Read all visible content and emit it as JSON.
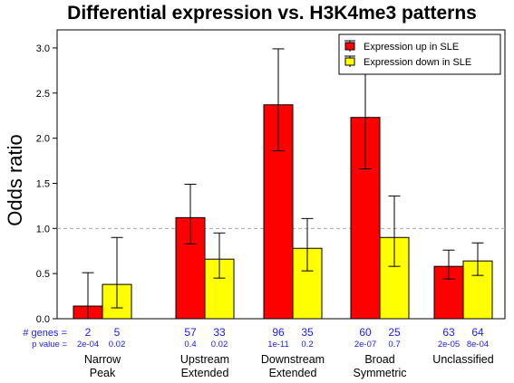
{
  "chart_data": {
    "type": "bar",
    "title": "Differential expression vs. H3K4me3 patterns",
    "ylabel": "Odds ratio",
    "xlabel": "",
    "ylim": [
      0,
      3.2
    ],
    "yticks": [
      "0.0",
      "0.5",
      "1.0",
      "1.5",
      "2.0",
      "2.5",
      "3.0"
    ],
    "ytick_values": [
      0,
      0.5,
      1.0,
      1.5,
      2.0,
      2.5,
      3.0
    ],
    "reference_line": 1.0,
    "legend_position": "top-right",
    "categories": [
      {
        "line1": "Narrow",
        "line2": "Peak"
      },
      {
        "line1": "Upstream",
        "line2": "Extended"
      },
      {
        "line1": "Downstream",
        "line2": "Extended"
      },
      {
        "line1": "Broad",
        "line2": "Symmetric"
      },
      {
        "line1": "Unclassified",
        "line2": ""
      }
    ],
    "series": [
      {
        "name": "Expression up in SLE",
        "color": "#ff0000",
        "values": [
          0.14,
          1.12,
          2.37,
          2.23,
          0.58
        ],
        "err_low": [
          0.0,
          0.83,
          1.86,
          1.66,
          0.44
        ],
        "err_high": [
          0.51,
          1.49,
          2.99,
          2.83,
          0.76
        ],
        "genes": [
          "2",
          "57",
          "96",
          "60",
          "63"
        ],
        "pvalues": [
          "2e-04",
          "0.4",
          "1e-11",
          "2e-07",
          "2e-05"
        ]
      },
      {
        "name": "Expression down in SLE",
        "color": "#ffff00",
        "values": [
          0.38,
          0.66,
          0.78,
          0.9,
          0.64
        ],
        "err_low": [
          0.12,
          0.45,
          0.53,
          0.58,
          0.48
        ],
        "err_high": [
          0.9,
          0.95,
          1.11,
          1.36,
          0.84
        ],
        "genes": [
          "5",
          "33",
          "35",
          "25",
          "64"
        ],
        "pvalues": [
          "0.02",
          "0.02",
          "0.2",
          "0.7",
          "8e-04"
        ]
      }
    ],
    "row_labels": {
      "genes": "# genes =",
      "pvalue": "p value ="
    }
  }
}
